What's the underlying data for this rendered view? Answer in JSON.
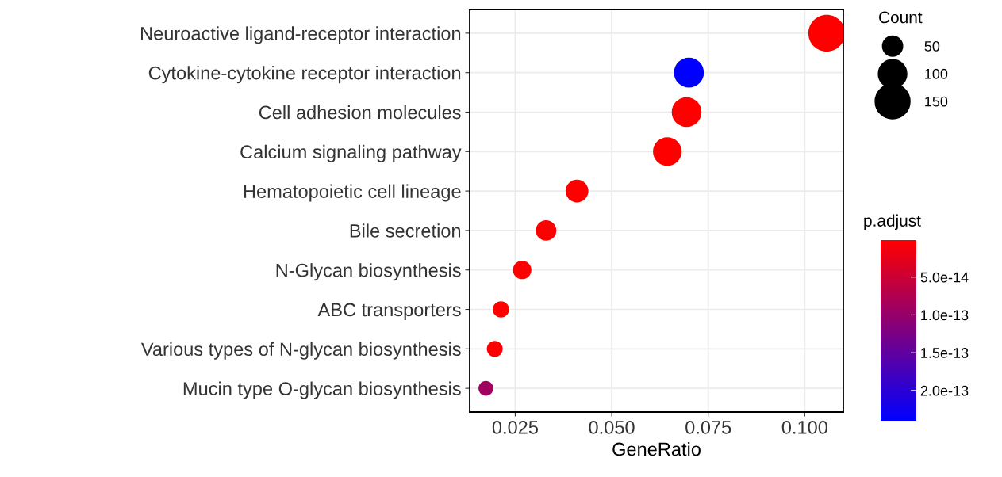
{
  "chart_data": {
    "type": "bubble",
    "xlabel": "GeneRatio",
    "categories": [
      "Neuroactive ligand-receptor interaction",
      "Cytokine-cytokine receptor interaction",
      "Cell adhesion molecules",
      "Calcium signaling pathway",
      "Hematopoietic cell lineage",
      "Bile secretion",
      "N-Glycan biosynthesis",
      "ABC transporters",
      "Various types of N-glycan biosynthesis",
      "Mucin type O-glycan biosynthesis"
    ],
    "values": [
      0.1057,
      0.07,
      0.0694,
      0.0644,
      0.041,
      0.033,
      0.0268,
      0.0213,
      0.0197,
      0.0174
    ],
    "sizes": [
      166,
      110,
      109,
      101,
      64,
      52,
      42,
      33,
      31,
      27
    ],
    "size_legend": [
      50,
      100,
      150
    ],
    "cvalues": [
      1e-15,
      2.4e-13,
      1e-15,
      1e-15,
      1e-15,
      1e-15,
      1e-15,
      1e-15,
      1e-15,
      9e-14
    ],
    "legend_title": "Count",
    "clabel": "p.adjust",
    "clim": [
      2.4e-13,
      1e-15
    ],
    "cticks": [
      {
        "value": 5e-14,
        "label": "5.0e-14"
      },
      {
        "value": 1e-13,
        "label": "1.0e-13"
      },
      {
        "value": 1.5e-13,
        "label": "1.5e-13"
      },
      {
        "value": 2e-13,
        "label": "2.0e-13"
      }
    ],
    "orientation": "horizontal",
    "xlim": [
      0.0132,
      0.11
    ],
    "xticks": [
      {
        "value": 0.025,
        "label": "0.025"
      },
      {
        "value": 0.05,
        "label": "0.050"
      },
      {
        "value": 0.075,
        "label": "0.075"
      },
      {
        "value": 0.1,
        "label": "0.100"
      }
    ],
    "grid": true
  }
}
